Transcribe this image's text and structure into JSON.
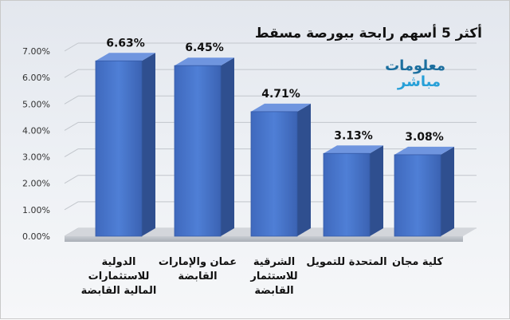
{
  "chart_data": {
    "type": "bar",
    "title": "أكثر 5 أسهم رابحة ببورصة مسقط",
    "categories": [
      [
        "الدولية",
        "للاستثمارات",
        "المالية القابضة"
      ],
      [
        "عمان والإمارات",
        "القابضة"
      ],
      [
        "الشرقية",
        "للاستثمار",
        "القابضة"
      ],
      [
        "المتحدة للتمويل"
      ],
      [
        "كلية مجان"
      ]
    ],
    "values": [
      6.63,
      6.45,
      4.71,
      3.13,
      3.08
    ],
    "data_labels": [
      "6.63%",
      "6.45%",
      "4.71%",
      "3.13%",
      "3.08%"
    ],
    "ylim": [
      0,
      7
    ],
    "y_ticks": [
      "0.00%",
      "1.00%",
      "2.00%",
      "3.00%",
      "4.00%",
      "5.00%",
      "6.00%",
      "7.00%"
    ],
    "grid": true,
    "legend": "none",
    "bar_color": "#4472c4"
  },
  "logo": {
    "line1": "معلومات",
    "line2": "مباشر"
  }
}
